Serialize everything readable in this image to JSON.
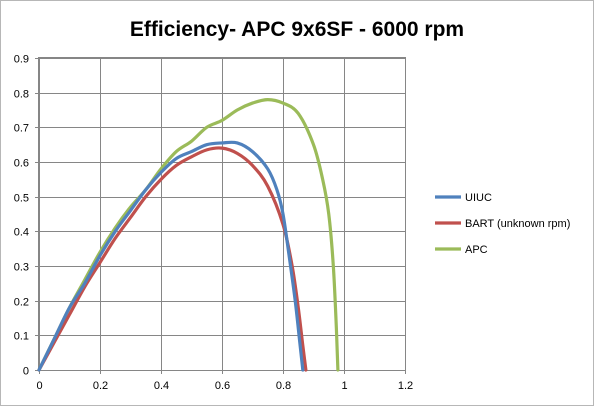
{
  "chart_data": {
    "type": "line",
    "title": "Efficiency- APC 9x6SF - 6000 rpm",
    "xlabel": "",
    "ylabel": "",
    "xlim": [
      0,
      1.2
    ],
    "ylim": [
      0,
      0.9
    ],
    "x_ticks": [
      "0",
      "0.2",
      "0.4",
      "0.6",
      "0.8",
      "1",
      "1.2"
    ],
    "y_ticks": [
      "0",
      "0.1",
      "0.2",
      "0.3",
      "0.4",
      "0.5",
      "0.6",
      "0.7",
      "0.8",
      "0.9"
    ],
    "grid": true,
    "legend_position": "right",
    "series": [
      {
        "name": "UIUC",
        "color": "#4f81bd",
        "points": [
          [
            0,
            0
          ],
          [
            0.05,
            0.09
          ],
          [
            0.1,
            0.18
          ],
          [
            0.15,
            0.25
          ],
          [
            0.2,
            0.33
          ],
          [
            0.25,
            0.4
          ],
          [
            0.3,
            0.46
          ],
          [
            0.35,
            0.52
          ],
          [
            0.4,
            0.57
          ],
          [
            0.45,
            0.61
          ],
          [
            0.5,
            0.63
          ],
          [
            0.55,
            0.65
          ],
          [
            0.6,
            0.655
          ],
          [
            0.65,
            0.655
          ],
          [
            0.7,
            0.63
          ],
          [
            0.75,
            0.58
          ],
          [
            0.78,
            0.52
          ],
          [
            0.8,
            0.45
          ],
          [
            0.82,
            0.33
          ],
          [
            0.84,
            0.2
          ],
          [
            0.855,
            0.08
          ],
          [
            0.865,
            0
          ]
        ]
      },
      {
        "name": "BART (unknown rpm)",
        "color": "#c0504d",
        "points": [
          [
            0,
            0
          ],
          [
            0.05,
            0.08
          ],
          [
            0.1,
            0.16
          ],
          [
            0.15,
            0.24
          ],
          [
            0.2,
            0.31
          ],
          [
            0.25,
            0.38
          ],
          [
            0.3,
            0.44
          ],
          [
            0.35,
            0.5
          ],
          [
            0.4,
            0.55
          ],
          [
            0.45,
            0.59
          ],
          [
            0.5,
            0.615
          ],
          [
            0.55,
            0.635
          ],
          [
            0.6,
            0.64
          ],
          [
            0.65,
            0.625
          ],
          [
            0.7,
            0.59
          ],
          [
            0.75,
            0.53
          ],
          [
            0.8,
            0.42
          ],
          [
            0.83,
            0.3
          ],
          [
            0.85,
            0.18
          ],
          [
            0.865,
            0.07
          ],
          [
            0.875,
            0
          ]
        ]
      },
      {
        "name": "APC",
        "color": "#9bbb59",
        "points": [
          [
            0,
            0
          ],
          [
            0.05,
            0.09
          ],
          [
            0.1,
            0.18
          ],
          [
            0.15,
            0.26
          ],
          [
            0.2,
            0.34
          ],
          [
            0.25,
            0.41
          ],
          [
            0.3,
            0.47
          ],
          [
            0.35,
            0.52
          ],
          [
            0.4,
            0.58
          ],
          [
            0.45,
            0.63
          ],
          [
            0.5,
            0.66
          ],
          [
            0.55,
            0.7
          ],
          [
            0.6,
            0.72
          ],
          [
            0.65,
            0.75
          ],
          [
            0.7,
            0.77
          ],
          [
            0.75,
            0.78
          ],
          [
            0.8,
            0.77
          ],
          [
            0.85,
            0.74
          ],
          [
            0.9,
            0.65
          ],
          [
            0.93,
            0.55
          ],
          [
            0.95,
            0.45
          ],
          [
            0.965,
            0.3
          ],
          [
            0.975,
            0.12
          ],
          [
            0.98,
            0
          ]
        ]
      }
    ]
  }
}
